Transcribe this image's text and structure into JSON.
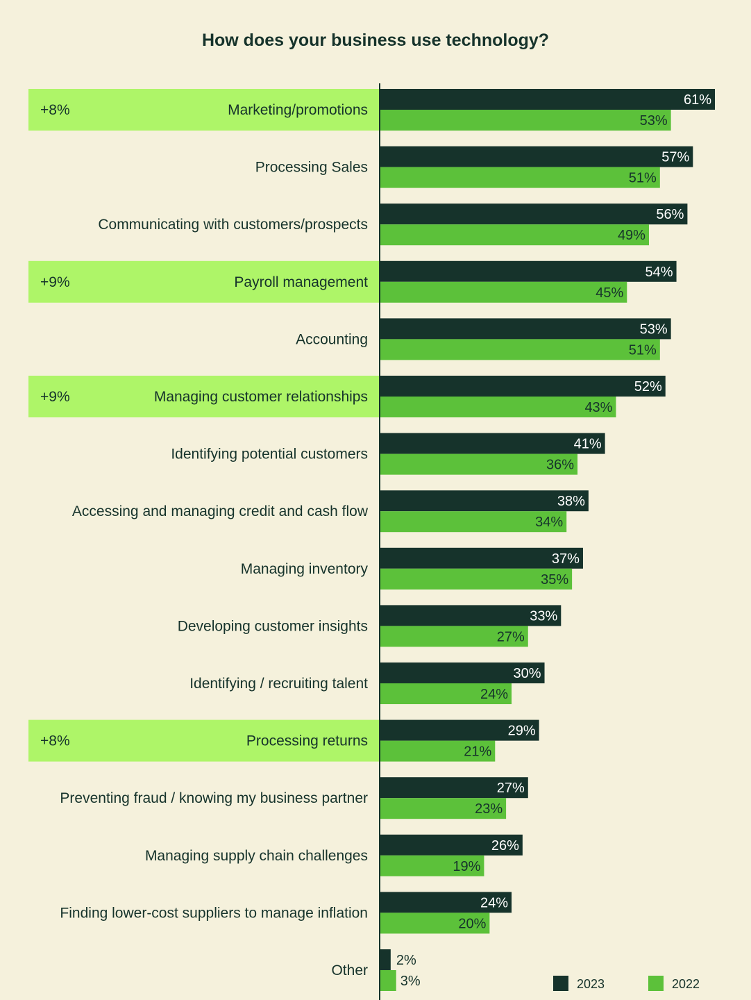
{
  "chart_data": {
    "type": "bar",
    "orientation": "horizontal",
    "title": "How does your business use technology?",
    "value_suffix": "%",
    "categories": [
      "Marketing/promotions",
      "Processing Sales",
      "Communicating with customers/prospects",
      "Payroll management",
      "Accounting",
      "Managing customer relationships",
      "Identifying potential customers",
      "Accessing and managing credit and cash flow",
      "Managing inventory",
      "Developing customer insights",
      "Identifying / recruiting talent",
      "Processing returns",
      "Preventing fraud / knowing my business partner",
      "Managing supply chain challenges",
      "Finding lower-cost suppliers to manage inflation",
      "Other"
    ],
    "series": [
      {
        "name": "2023",
        "color": "#16332b",
        "values": [
          61,
          57,
          56,
          54,
          53,
          52,
          41,
          38,
          37,
          33,
          30,
          29,
          27,
          26,
          24,
          2
        ]
      },
      {
        "name": "2022",
        "color": "#5cc13a",
        "values": [
          53,
          51,
          49,
          45,
          51,
          43,
          36,
          34,
          35,
          27,
          24,
          21,
          23,
          19,
          20,
          3
        ]
      }
    ],
    "highlights": [
      {
        "category_index": 0,
        "label": "+8%"
      },
      {
        "category_index": 3,
        "label": "+9%"
      },
      {
        "category_index": 5,
        "label": "+9%"
      },
      {
        "category_index": 11,
        "label": "+8%"
      }
    ],
    "highlight_color": "#aef568",
    "legend": {
      "position": "bottom-right",
      "entries": [
        "2023",
        "2022"
      ]
    },
    "xlim": [
      0,
      61
    ],
    "grid": false
  }
}
